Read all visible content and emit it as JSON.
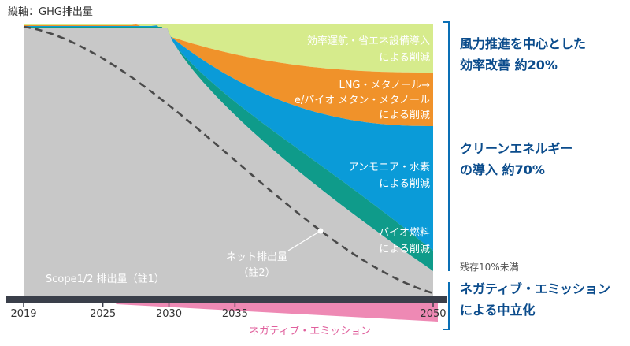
{
  "chart_data": {
    "type": "area",
    "y_axis_label": "縦軸：GHG排出量",
    "x_ticks": [
      2019,
      2025,
      2030,
      2035,
      2050
    ],
    "xlim": [
      2019,
      2050
    ],
    "ylim": [
      -12,
      100
    ],
    "colors": {
      "efficiency": "#d6eb8c",
      "lng_methanol": "#f0922a",
      "ammonia_hydrogen": "#0a9bd8",
      "biofuel": "#0f9b8a",
      "scope12": "#c8c8c8",
      "negative": "#ee89b4",
      "bracket": "#0a6fb5"
    },
    "bands": [
      {
        "key": "efficiency",
        "labels": [
          "効率運航・省エネ設備導入",
          "による削減"
        ]
      },
      {
        "key": "lng_methanol",
        "labels": [
          "LNG・メタノール→",
          "e/バイオ メタン・メタノール",
          "による削減"
        ]
      },
      {
        "key": "ammonia_hydrogen",
        "labels": [
          "アンモニア・水素",
          "による削減"
        ]
      },
      {
        "key": "biofuel",
        "labels": [
          "バイオ燃料",
          "による削減"
        ]
      }
    ],
    "scope12_label": "Scope1/2 排出量（註1）",
    "net_label": [
      "ネット排出量",
      "（註2）"
    ],
    "negative_label": "ネガティブ・エミッション",
    "residual_label": "残存10%未満",
    "groups": [
      {
        "key": "wind",
        "labels": [
          "風力推進を中心とした",
          "効率改善 約20%"
        ]
      },
      {
        "key": "clean",
        "labels": [
          "クリーンエネルギー",
          "の導入 約70%"
        ]
      },
      {
        "key": "neutral",
        "labels": [
          "ネガティブ・エミッション",
          "による中立化"
        ]
      }
    ]
  }
}
